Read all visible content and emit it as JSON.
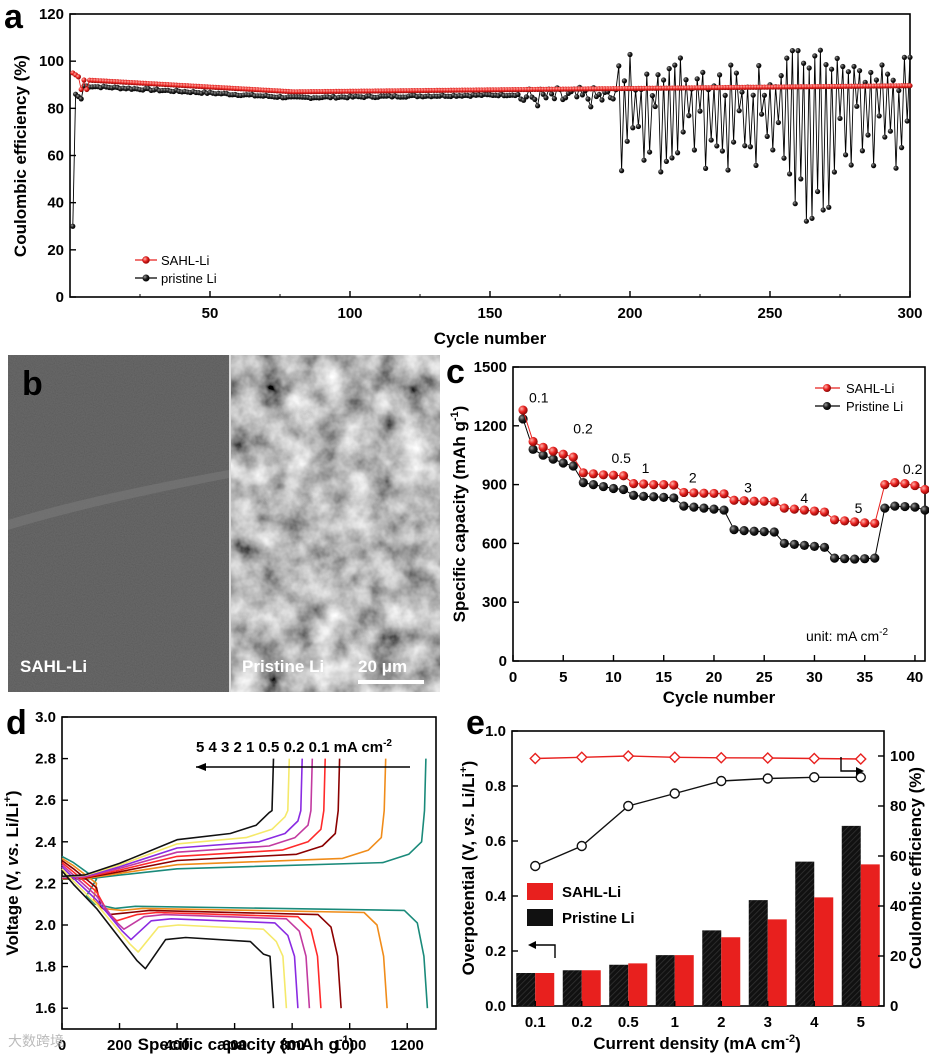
{
  "panel_labels": {
    "a": "a",
    "b": "b",
    "c": "c",
    "d": "d",
    "e": "e"
  },
  "watermark": "大数跨境",
  "chart_data": [
    {
      "id": "a",
      "type": "scatter",
      "xlabel": "Cycle number",
      "ylabel": "Coulombic efficiency (%)",
      "xlim": [
        0,
        300
      ],
      "ylim": [
        0,
        120
      ],
      "xticks": [
        "50",
        "100",
        "150",
        "200",
        "250",
        "300"
      ],
      "yticks": [
        "0",
        "20",
        "40",
        "60",
        "80",
        "100",
        "120"
      ],
      "legend": [
        "SAHL-Li",
        "pristine Li"
      ],
      "series": [
        {
          "name": "SAHL-Li",
          "color": "#e8201e",
          "description": "starts ~95% at cycle 1-3, ~92% at cycle 5, decreases to ~87% by cycle 80, then slowly rises to ~89.5% at cycle 300"
        },
        {
          "name": "pristine Li",
          "color": "#000000",
          "description": "~90% at start, dips to ~84% around cycle 80-150, scatters 78-90% after cycle 160, strongly fluctuates between ~30% and ~104% after cycle 195"
        }
      ]
    },
    {
      "id": "c",
      "type": "scatter",
      "xlabel": "Cycle number",
      "ylabel": "Specific capacity (mAh g-1)",
      "ylabel_main": "Specific capacity (mAh g",
      "ylabel_sup": "-1",
      "ylabel_close": ")",
      "xlim": [
        0,
        41
      ],
      "ylim": [
        0,
        1500
      ],
      "xticks": [
        "0",
        "5",
        "10",
        "15",
        "20",
        "25",
        "30",
        "35",
        "40"
      ],
      "yticks": [
        "0",
        "300",
        "600",
        "900",
        "1200",
        "1500"
      ],
      "legend": [
        "SAHL-Li",
        "Pristine Li"
      ],
      "unit_note": "unit: mA cm",
      "unit_sup": "-2",
      "rate_labels": [
        "0.1",
        "0.2",
        "0.5",
        "1",
        "2",
        "3",
        "4",
        "5",
        "0.2"
      ],
      "series": [
        {
          "name": "SAHL-Li",
          "color": "#e8201e",
          "x": [
            1,
            2,
            3,
            4,
            5,
            6,
            7,
            8,
            9,
            10,
            11,
            12,
            13,
            14,
            15,
            16,
            17,
            18,
            19,
            20,
            21,
            22,
            23,
            24,
            25,
            26,
            27,
            28,
            29,
            30,
            31,
            32,
            33,
            34,
            35,
            36,
            37,
            38,
            39,
            40,
            41
          ],
          "y": [
            1280,
            1120,
            1090,
            1070,
            1055,
            1040,
            960,
            955,
            950,
            948,
            945,
            905,
            903,
            900,
            900,
            898,
            860,
            858,
            856,
            855,
            853,
            820,
            818,
            815,
            815,
            812,
            780,
            775,
            770,
            765,
            760,
            720,
            715,
            710,
            705,
            702,
            900,
            910,
            905,
            895,
            875
          ]
        },
        {
          "name": "Pristine Li",
          "color": "#000000",
          "x": [
            1,
            2,
            3,
            4,
            5,
            6,
            7,
            8,
            9,
            10,
            11,
            12,
            13,
            14,
            15,
            16,
            17,
            18,
            19,
            20,
            21,
            22,
            23,
            24,
            25,
            26,
            27,
            28,
            29,
            30,
            31,
            32,
            33,
            34,
            35,
            36,
            37,
            38,
            39,
            40,
            41
          ],
          "y": [
            1235,
            1080,
            1050,
            1030,
            1010,
            995,
            910,
            900,
            890,
            880,
            875,
            845,
            840,
            838,
            835,
            832,
            790,
            785,
            780,
            775,
            770,
            670,
            665,
            662,
            660,
            658,
            600,
            595,
            590,
            585,
            580,
            525,
            522,
            520,
            522,
            525,
            780,
            790,
            788,
            785,
            770
          ]
        }
      ]
    },
    {
      "id": "d",
      "type": "line",
      "xlabel": "Specific capacity (mAh g-1)",
      "xlabel_main": "Specific capacity (mAh g",
      "xlabel_sup": "-1",
      "xlabel_close": ")",
      "ylabel": "Voltage (V, vs. Li/Li+)",
      "xlim": [
        0,
        1300
      ],
      "ylim": [
        1.5,
        3.0
      ],
      "xticks": [
        "0",
        "200",
        "400",
        "600",
        "800",
        "1000",
        "1200"
      ],
      "yticks": [
        "1.6",
        "1.8",
        "2.0",
        "2.2",
        "2.4",
        "2.6",
        "2.8",
        "3.0"
      ],
      "rate_annotation": "5  4  3  2  1  0.5  0.2  0.1 mA cm",
      "rate_sup": "-2",
      "series": [
        {
          "rate": "0.1",
          "color": "#1a8a7a",
          "discharge_end": 1270,
          "charge_end": 1265,
          "plateau": 2.09,
          "dip": 2.1
        },
        {
          "rate": "0.2",
          "color": "#f08c1a",
          "discharge_end": 1130,
          "charge_end": 1125,
          "plateau": 2.08,
          "dip": 2.08
        },
        {
          "rate": "0.5",
          "color": "#8b0000",
          "discharge_end": 970,
          "charge_end": 965,
          "plateau": 2.07,
          "dip": 2.05
        },
        {
          "rate": "1",
          "color": "#ff2a2a",
          "discharge_end": 900,
          "charge_end": 915,
          "plateau": 2.06,
          "dip": 2.02
        },
        {
          "rate": "2",
          "color": "#c23aa0",
          "discharge_end": 860,
          "charge_end": 870,
          "plateau": 2.05,
          "dip": 1.98
        },
        {
          "rate": "3",
          "color": "#8a2be2",
          "discharge_end": 820,
          "charge_end": 835,
          "plateau": 2.03,
          "dip": 1.93
        },
        {
          "rate": "4",
          "color": "#f5e96a",
          "discharge_end": 780,
          "charge_end": 790,
          "plateau": 2.0,
          "dip": 1.87
        },
        {
          "rate": "5",
          "color": "#111111",
          "discharge_end": 735,
          "charge_end": 735,
          "plateau": 1.94,
          "dip": 1.79
        }
      ]
    },
    {
      "id": "e",
      "type": "bar",
      "xlabel": "Current density (mA cm-2)",
      "xlabel_main": "Current density (mA cm",
      "xlabel_sup": "-2",
      "xlabel_close": ")",
      "ylabel": "Overpotential (V, vs. Li/Li+)",
      "ylabel_right": "Coulombic efficiency (%)",
      "categories": [
        "0.1",
        "0.2",
        "0.5",
        "1",
        "2",
        "3",
        "4",
        "5"
      ],
      "ylim": [
        0,
        1.0
      ],
      "ylim_right": [
        0,
        110
      ],
      "yticks": [
        "0.0",
        "0.2",
        "0.4",
        "0.6",
        "0.8",
        "1.0"
      ],
      "yticks_right": [
        "0",
        "20",
        "40",
        "60",
        "80",
        "100"
      ],
      "legend": [
        "SAHL-Li",
        "Pristine Li"
      ],
      "bars": [
        {
          "name": "Pristine Li",
          "color": "#111111",
          "values": [
            0.12,
            0.13,
            0.15,
            0.185,
            0.275,
            0.385,
            0.525,
            0.655
          ]
        },
        {
          "name": "SAHL-Li",
          "color": "#e8201e",
          "values": [
            0.12,
            0.13,
            0.155,
            0.185,
            0.25,
            0.315,
            0.395,
            0.515
          ]
        }
      ],
      "lines": [
        {
          "name": "SAHL-Li CE",
          "color": "#e8201e",
          "marker": "diamond",
          "values": [
            99,
            99.5,
            100,
            99.5,
            99.3,
            99.2,
            99,
            98.8
          ]
        },
        {
          "name": "Pristine Li CE",
          "color": "#111111",
          "marker": "circle",
          "values": [
            56,
            64,
            80,
            85,
            90,
            91,
            91.5,
            91.5
          ]
        }
      ]
    }
  ],
  "panel_b": {
    "left_label": "SAHL-Li",
    "right_label": "Pristine Li",
    "scale_bar": "20 μm"
  }
}
